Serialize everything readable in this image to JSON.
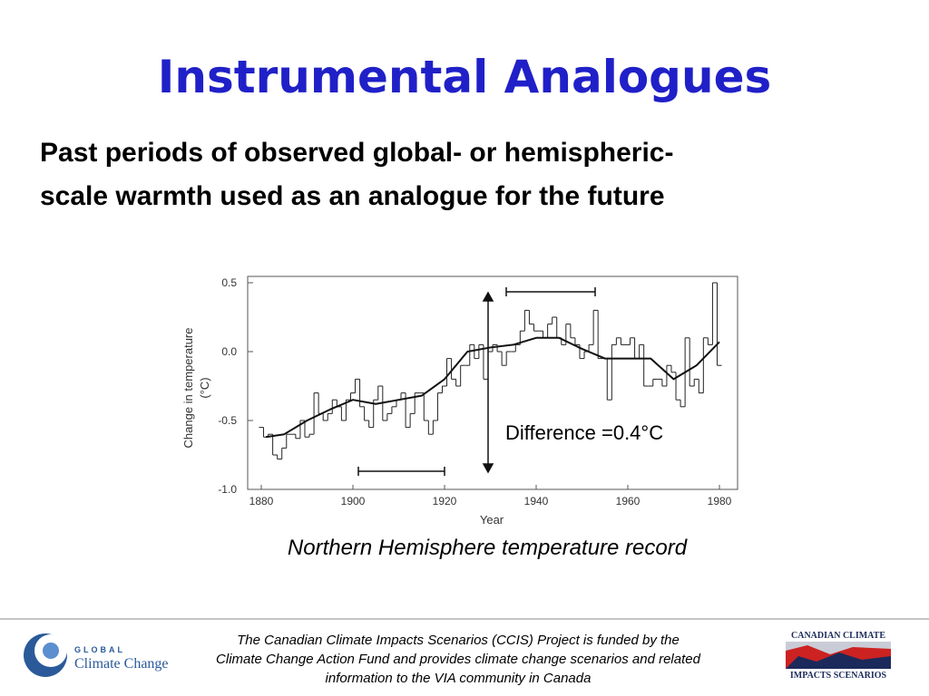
{
  "title": "Instrumental Analogues",
  "subtitle": [
    "Past periods of observed global- or hemispheric-",
    "scale warmth used as an analogue for the future"
  ],
  "annotation": "Difference =0.4°C",
  "caption": "Northern Hemisphere temperature record",
  "footer": {
    "lines": [
      "The Canadian Climate Impacts Scenarios (CCIS) Project is funded by the",
      "Climate Change Action Fund and provides climate change scenarios and related",
      "information to the VIA community in Canada"
    ],
    "left_logo": [
      "GLOBAL",
      "Climate Change"
    ],
    "right_logo": [
      "CANADIAN CLIMATE",
      "IMPACTS SCENARIOS"
    ]
  },
  "chart_data": {
    "type": "line",
    "x_label": "Year",
    "y_label": [
      "Change in temperature",
      "(°C)"
    ],
    "xlim": [
      1880,
      1980
    ],
    "xticks": [
      1880,
      1900,
      1920,
      1940,
      1960,
      1980
    ],
    "ylim": [
      -1.0,
      0.5
    ],
    "yticks": [
      {
        "value": -1.0,
        "label": "-1.0"
      },
      -0.5,
      {
        "value": 0.0,
        "label": "0.0"
      },
      0.5
    ],
    "series": [
      {
        "color": "#222222",
        "step": true,
        "x": [
          1880,
          1881,
          1882,
          1883,
          1884,
          1885,
          1886,
          1887,
          1888,
          1889,
          1890,
          1891,
          1892,
          1893,
          1894,
          1895,
          1896,
          1897,
          1898,
          1899,
          1900,
          1901,
          1902,
          1903,
          1904,
          1905,
          1906,
          1907,
          1908,
          1909,
          1910,
          1911,
          1912,
          1913,
          1914,
          1915,
          1916,
          1917,
          1918,
          1919,
          1920,
          1921,
          1922,
          1923,
          1924,
          1925,
          1926,
          1927,
          1928,
          1929,
          1930,
          1931,
          1932,
          1933,
          1934,
          1935,
          1936,
          1937,
          1938,
          1939,
          1940,
          1941,
          1942,
          1943,
          1944,
          1945,
          1946,
          1947,
          1948,
          1949,
          1950,
          1951,
          1952,
          1953,
          1954,
          1955,
          1956,
          1957,
          1958,
          1959,
          1960,
          1961,
          1962,
          1963,
          1964,
          1965,
          1966,
          1967,
          1968,
          1969,
          1970,
          1971,
          1972,
          1973,
          1974,
          1975,
          1976,
          1977,
          1978,
          1979,
          1980
        ],
        "values": [
          -0.55,
          -0.62,
          -0.6,
          -0.75,
          -0.78,
          -0.7,
          -0.6,
          -0.6,
          -0.63,
          -0.5,
          -0.62,
          -0.6,
          -0.3,
          -0.45,
          -0.5,
          -0.45,
          -0.35,
          -0.4,
          -0.5,
          -0.35,
          -0.3,
          -0.2,
          -0.4,
          -0.5,
          -0.55,
          -0.35,
          -0.25,
          -0.5,
          -0.45,
          -0.4,
          -0.35,
          -0.3,
          -0.55,
          -0.45,
          -0.3,
          -0.3,
          -0.5,
          -0.6,
          -0.5,
          -0.3,
          -0.25,
          -0.05,
          -0.2,
          -0.25,
          -0.1,
          -0.1,
          0.05,
          -0.05,
          0.05,
          -0.2,
          0.0,
          0.05,
          0.0,
          -0.1,
          0.0,
          0.0,
          0.05,
          0.15,
          0.3,
          0.2,
          0.15,
          0.15,
          0.1,
          0.2,
          0.25,
          0.1,
          0.05,
          0.2,
          0.1,
          0.05,
          -0.05,
          0.0,
          0.05,
          0.3,
          -0.05,
          -0.05,
          -0.35,
          0.05,
          0.1,
          0.05,
          0.05,
          0.1,
          -0.05,
          0.05,
          -0.25,
          -0.25,
          -0.2,
          -0.2,
          -0.25,
          -0.1,
          -0.15,
          -0.35,
          -0.4,
          0.1,
          -0.25,
          -0.2,
          -0.3,
          0.1,
          0.05,
          0.5,
          -0.1
        ]
      },
      {
        "color": "#111111",
        "step": false,
        "x": [
          1881,
          1885,
          1890,
          1895,
          1900,
          1905,
          1910,
          1915,
          1920,
          1925,
          1930,
          1935,
          1940,
          1945,
          1950,
          1955,
          1960,
          1965,
          1970,
          1975,
          1980
        ],
        "values": [
          -0.62,
          -0.6,
          -0.5,
          -0.42,
          -0.35,
          -0.38,
          -0.35,
          -0.32,
          -0.2,
          0.0,
          0.03,
          0.05,
          0.1,
          0.1,
          0.02,
          -0.05,
          -0.05,
          -0.05,
          -0.2,
          -0.1,
          0.07
        ]
      }
    ]
  }
}
